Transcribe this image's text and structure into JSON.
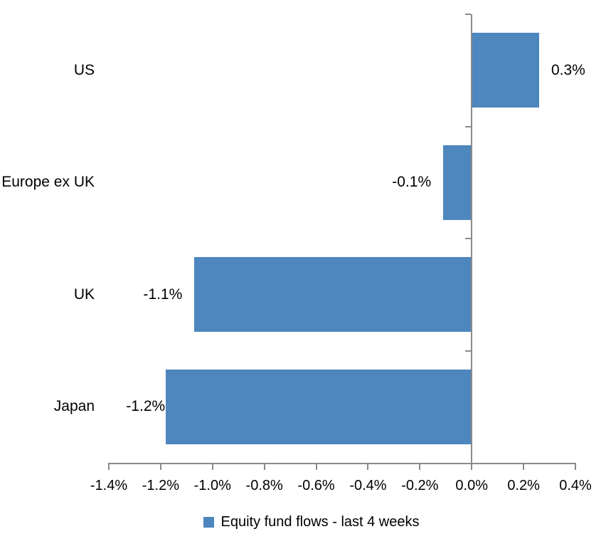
{
  "chart_data": {
    "type": "bar",
    "orientation": "horizontal",
    "title": "",
    "xlabel": "",
    "ylabel": "",
    "categories": [
      "US",
      "Europe ex UK",
      "UK",
      "Japan"
    ],
    "series": [
      {
        "name": "Equity fund flows - last 4 weeks",
        "values": [
          0.26,
          -0.11,
          -1.07,
          -1.18
        ],
        "data_labels": [
          "0.3%",
          "-0.1%",
          "-1.1%",
          "-1.2%"
        ]
      }
    ],
    "value_unit": "%",
    "xlim": [
      -1.4,
      0.4
    ],
    "x_tick_step": 0.2,
    "x_tick_values": [
      -1.4,
      -1.2,
      -1.0,
      -0.8,
      -0.6,
      -0.4,
      -0.2,
      0.0,
      0.2,
      0.4
    ],
    "x_tick_labels": [
      "-1.4%",
      "-1.2%",
      "-1.0%",
      "-0.8%",
      "-0.6%",
      "-0.4%",
      "-0.2%",
      "0.0%",
      "0.2%",
      "0.4%"
    ],
    "grid": false,
    "legend_position": "bottom",
    "colors": {
      "bar": "#4E86BE",
      "axis": "#8A8A8A",
      "text": "#000000",
      "background": "#FFFFFF"
    }
  },
  "legend": {
    "marker_icon": "legend-square-marker",
    "label": "Equity fund flows - last 4 weeks"
  }
}
